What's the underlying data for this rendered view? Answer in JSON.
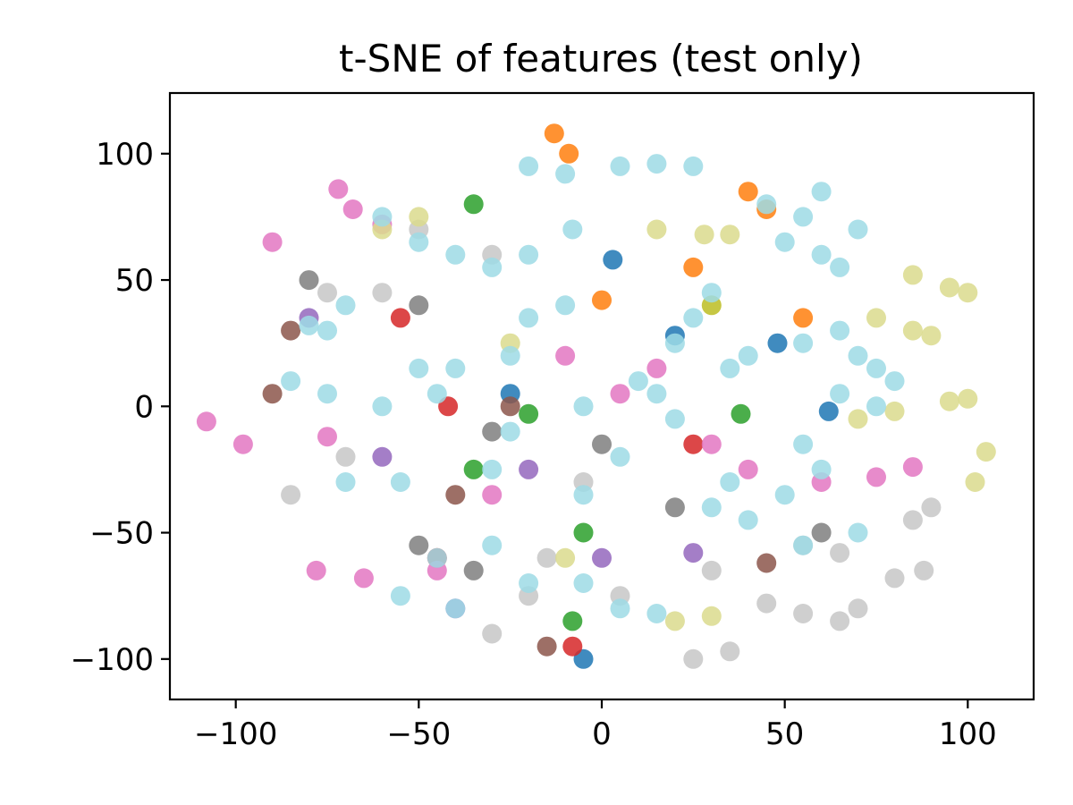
{
  "chart_data": {
    "type": "scatter",
    "title": "t-SNE of features (test only)",
    "xlabel": "",
    "ylabel": "",
    "xlim": [
      -118,
      118
    ],
    "ylim": [
      -116,
      124
    ],
    "xticks": [
      -100,
      -50,
      0,
      50,
      100
    ],
    "yticks": [
      -100,
      -50,
      0,
      50,
      100
    ],
    "xtick_labels": [
      "−100",
      "−50",
      "0",
      "50",
      "100"
    ],
    "ytick_labels": [
      "−100",
      "−50",
      "0",
      "50",
      "100"
    ],
    "grid": false,
    "legend": "none",
    "series": [
      {
        "color": "#1f77b4",
        "values": [
          [
            -5,
            -100
          ],
          [
            20,
            28
          ],
          [
            48,
            25
          ],
          [
            62,
            -2
          ],
          [
            -25,
            5
          ],
          [
            3,
            58
          ]
        ]
      },
      {
        "color": "#ff7f0e",
        "values": [
          [
            -13,
            108
          ],
          [
            -9,
            100
          ],
          [
            40,
            85
          ],
          [
            45,
            78
          ],
          [
            55,
            35
          ],
          [
            25,
            55
          ],
          [
            0,
            42
          ]
        ]
      },
      {
        "color": "#2ca02c",
        "values": [
          [
            -35,
            80
          ],
          [
            -20,
            -3
          ],
          [
            -5,
            -50
          ],
          [
            -8,
            -85
          ],
          [
            38,
            -3
          ],
          [
            -35,
            -25
          ]
        ]
      },
      {
        "color": "#d62728",
        "values": [
          [
            -42,
            0
          ],
          [
            -55,
            35
          ],
          [
            25,
            -15
          ],
          [
            -8,
            -95
          ],
          [
            -45,
            -60
          ]
        ]
      },
      {
        "color": "#9467bd",
        "values": [
          [
            -80,
            35
          ],
          [
            -60,
            -20
          ],
          [
            -20,
            -25
          ],
          [
            25,
            -58
          ],
          [
            -40,
            -80
          ],
          [
            0,
            -60
          ]
        ]
      },
      {
        "color": "#8c564b",
        "values": [
          [
            -85,
            30
          ],
          [
            -90,
            5
          ],
          [
            -25,
            0
          ],
          [
            -40,
            -35
          ],
          [
            45,
            -62
          ],
          [
            -15,
            -95
          ]
        ]
      },
      {
        "color": "#e377c2",
        "values": [
          [
            -108,
            -6
          ],
          [
            -98,
            -15
          ],
          [
            -75,
            -12
          ],
          [
            -90,
            65
          ],
          [
            -72,
            86
          ],
          [
            -68,
            78
          ],
          [
            -60,
            72
          ],
          [
            -78,
            -65
          ],
          [
            -65,
            -68
          ],
          [
            -45,
            -65
          ],
          [
            -30,
            -35
          ],
          [
            -10,
            20
          ],
          [
            15,
            15
          ],
          [
            40,
            -25
          ],
          [
            60,
            -30
          ],
          [
            75,
            -28
          ],
          [
            85,
            -24
          ],
          [
            30,
            -15
          ],
          [
            5,
            5
          ]
        ]
      },
      {
        "color": "#7f7f7f",
        "values": [
          [
            -80,
            50
          ],
          [
            -50,
            40
          ],
          [
            -30,
            -10
          ],
          [
            0,
            -15
          ],
          [
            20,
            -40
          ],
          [
            -50,
            -55
          ],
          [
            -35,
            -65
          ],
          [
            60,
            -50
          ]
        ]
      },
      {
        "color": "#c7c7c7",
        "values": [
          [
            -85,
            -35
          ],
          [
            -70,
            -20
          ],
          [
            -60,
            45
          ],
          [
            -75,
            45
          ],
          [
            -30,
            60
          ],
          [
            -50,
            70
          ],
          [
            -5,
            -30
          ],
          [
            -15,
            -60
          ],
          [
            -30,
            -90
          ],
          [
            5,
            -75
          ],
          [
            30,
            -65
          ],
          [
            55,
            -55
          ],
          [
            65,
            -58
          ],
          [
            85,
            -45
          ],
          [
            90,
            -40
          ],
          [
            80,
            -68
          ],
          [
            88,
            -65
          ],
          [
            45,
            -78
          ],
          [
            55,
            -82
          ],
          [
            65,
            -85
          ],
          [
            70,
            -80
          ],
          [
            25,
            -100
          ],
          [
            35,
            -97
          ],
          [
            -20,
            -75
          ]
        ]
      },
      {
        "color": "#bcbd22",
        "values": [
          [
            30,
            40
          ]
        ]
      },
      {
        "color": "#dbdb8d",
        "values": [
          [
            15,
            70
          ],
          [
            28,
            68
          ],
          [
            35,
            68
          ],
          [
            85,
            52
          ],
          [
            95,
            47
          ],
          [
            100,
            45
          ],
          [
            75,
            35
          ],
          [
            85,
            30
          ],
          [
            90,
            28
          ],
          [
            70,
            -5
          ],
          [
            80,
            -2
          ],
          [
            95,
            2
          ],
          [
            100,
            3
          ],
          [
            105,
            -18
          ],
          [
            102,
            -30
          ],
          [
            20,
            -85
          ],
          [
            30,
            -83
          ],
          [
            -10,
            -60
          ],
          [
            -50,
            75
          ],
          [
            -60,
            70
          ],
          [
            -25,
            25
          ]
        ]
      },
      {
        "color": "#9edae5",
        "values": [
          [
            -20,
            95
          ],
          [
            -10,
            92
          ],
          [
            5,
            95
          ],
          [
            15,
            96
          ],
          [
            25,
            95
          ],
          [
            -8,
            70
          ],
          [
            -20,
            60
          ],
          [
            -30,
            55
          ],
          [
            -40,
            60
          ],
          [
            -50,
            65
          ],
          [
            -60,
            75
          ],
          [
            -70,
            40
          ],
          [
            -75,
            30
          ],
          [
            -20,
            35
          ],
          [
            -10,
            40
          ],
          [
            -25,
            20
          ],
          [
            -40,
            15
          ],
          [
            -50,
            15
          ],
          [
            -45,
            5
          ],
          [
            -60,
            0
          ],
          [
            -75,
            5
          ],
          [
            -85,
            10
          ],
          [
            -70,
            -30
          ],
          [
            -55,
            -30
          ],
          [
            -30,
            -55
          ],
          [
            -45,
            -60
          ],
          [
            -55,
            -75
          ],
          [
            -40,
            -80
          ],
          [
            -20,
            -70
          ],
          [
            -5,
            -70
          ],
          [
            5,
            -80
          ],
          [
            15,
            -82
          ],
          [
            -5,
            -35
          ],
          [
            5,
            -20
          ],
          [
            -5,
            0
          ],
          [
            10,
            10
          ],
          [
            20,
            25
          ],
          [
            25,
            35
          ],
          [
            30,
            45
          ],
          [
            35,
            15
          ],
          [
            40,
            20
          ],
          [
            15,
            5
          ],
          [
            20,
            -5
          ],
          [
            30,
            -40
          ],
          [
            40,
            -45
          ],
          [
            50,
            -35
          ],
          [
            55,
            -55
          ],
          [
            70,
            -50
          ],
          [
            55,
            75
          ],
          [
            50,
            65
          ],
          [
            60,
            60
          ],
          [
            65,
            55
          ],
          [
            70,
            70
          ],
          [
            60,
            85
          ],
          [
            65,
            30
          ],
          [
            55,
            25
          ],
          [
            70,
            20
          ],
          [
            75,
            15
          ],
          [
            80,
            10
          ],
          [
            65,
            5
          ],
          [
            75,
            0
          ],
          [
            55,
            -15
          ],
          [
            60,
            -25
          ],
          [
            35,
            -30
          ],
          [
            -30,
            -25
          ],
          [
            -25,
            -10
          ],
          [
            45,
            80
          ],
          [
            -80,
            32
          ]
        ]
      }
    ]
  }
}
